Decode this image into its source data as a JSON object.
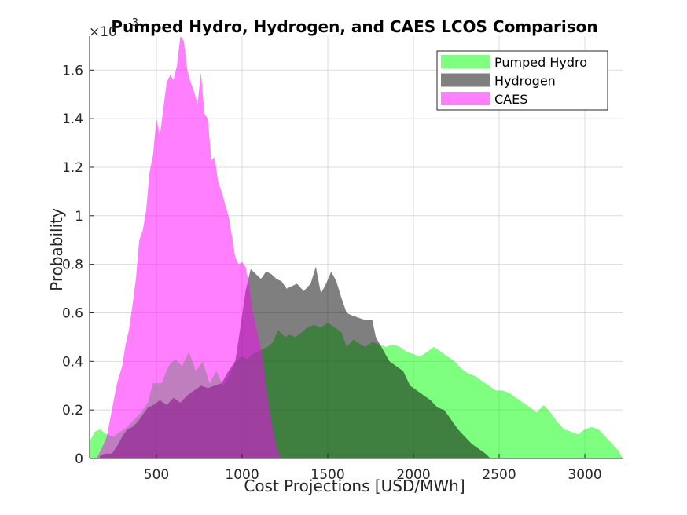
{
  "chart_data": {
    "type": "area",
    "title": "Pumped Hydro, Hydrogen, and CAES LCOS Comparison",
    "xlabel": "Cost Projections [USD/MWh]",
    "ylabel": "Probability",
    "y_exponent_label": "×10",
    "y_exponent_power": "-3",
    "xlim": [
      110,
      3220
    ],
    "ylim": [
      0,
      0.00174
    ],
    "x_ticks": [
      500,
      1000,
      1500,
      2000,
      2500,
      3000
    ],
    "x_tick_labels": [
      "500",
      "1000",
      "1500",
      "2000",
      "2500",
      "3000"
    ],
    "y_ticks": [
      0,
      0.0002,
      0.0004,
      0.0006,
      0.0008,
      0.001,
      0.0012,
      0.0014,
      0.0016
    ],
    "y_tick_labels": [
      "0",
      "0.2",
      "0.4",
      "0.6",
      "0.8",
      "1",
      "1.2",
      "1.4",
      "1.6"
    ],
    "grid": true,
    "legend_position": "top-right",
    "series": [
      {
        "name": "Pumped Hydro",
        "color": "#00ff00",
        "opacity": 0.5,
        "x": [
          110,
          140,
          170,
          210,
          250,
          290,
          330,
          370,
          410,
          450,
          480,
          530,
          570,
          610,
          650,
          690,
          730,
          770,
          810,
          850,
          890,
          930,
          960,
          1000,
          1030,
          1060,
          1090,
          1120,
          1150,
          1180,
          1210,
          1250,
          1280,
          1310,
          1350,
          1380,
          1420,
          1460,
          1500,
          1540,
          1580,
          1610,
          1650,
          1690,
          1720,
          1760,
          1800,
          1840,
          1880,
          1920,
          1960,
          2000,
          2040,
          2080,
          2120,
          2160,
          2200,
          2240,
          2280,
          2320,
          2360,
          2400,
          2440,
          2480,
          2520,
          2560,
          2600,
          2640,
          2680,
          2720,
          2760,
          2800,
          2840,
          2880,
          2920,
          2960,
          3000,
          3040,
          3080,
          3120,
          3160,
          3200,
          3220
        ],
        "y": [
          7e-05,
          0.00011,
          0.00012,
          0.0001,
          9e-05,
          0.00011,
          0.00013,
          0.00016,
          0.00019,
          0.00023,
          0.00031,
          0.00031,
          0.00038,
          0.00041,
          0.00038,
          0.00044,
          0.00036,
          0.0004,
          0.00031,
          0.00036,
          0.0003,
          0.00035,
          0.0004,
          0.00042,
          0.00041,
          0.00043,
          0.00044,
          0.00045,
          0.00046,
          0.00048,
          0.00053,
          0.0005,
          0.00051,
          0.0005,
          0.00052,
          0.00054,
          0.00055,
          0.00054,
          0.00056,
          0.00054,
          0.00052,
          0.00046,
          0.00049,
          0.00047,
          0.00046,
          0.00048,
          0.00047,
          0.00046,
          0.00047,
          0.00046,
          0.00044,
          0.00043,
          0.00042,
          0.00044,
          0.00046,
          0.00044,
          0.00042,
          0.0004,
          0.00037,
          0.00035,
          0.00034,
          0.00032,
          0.0003,
          0.00028,
          0.00028,
          0.00027,
          0.00025,
          0.00023,
          0.00021,
          0.00019,
          0.00022,
          0.00019,
          0.00015,
          0.00012,
          0.00011,
          0.0001,
          0.00012,
          0.00013,
          0.00012,
          9e-05,
          6e-05,
          3e-05,
          0.0
        ]
      },
      {
        "name": "Hydrogen",
        "color": "#000000",
        "opacity": 0.5,
        "x": [
          170,
          200,
          240,
          270,
          300,
          330,
          360,
          390,
          420,
          450,
          480,
          520,
          560,
          600,
          640,
          680,
          720,
          760,
          800,
          840,
          880,
          920,
          960,
          990,
          1020,
          1050,
          1080,
          1110,
          1140,
          1170,
          1200,
          1230,
          1260,
          1290,
          1320,
          1360,
          1400,
          1430,
          1460,
          1490,
          1520,
          1550,
          1580,
          1610,
          1640,
          1680,
          1720,
          1760,
          1780,
          1820,
          1860,
          1900,
          1940,
          1980,
          2020,
          2060,
          2100,
          2140,
          2180,
          2220,
          2260,
          2300,
          2340,
          2380,
          2420,
          2450
        ],
        "y": [
          1e-05,
          2e-05,
          2e-05,
          5e-05,
          9e-05,
          0.00012,
          0.00013,
          0.00015,
          0.00018,
          0.00021,
          0.00022,
          0.00024,
          0.00022,
          0.00025,
          0.00023,
          0.00026,
          0.00028,
          0.0003,
          0.00029,
          0.0003,
          0.00031,
          0.00036,
          0.0004,
          0.00054,
          0.00069,
          0.00078,
          0.00076,
          0.00074,
          0.00077,
          0.00076,
          0.00074,
          0.00073,
          0.0007,
          0.00071,
          0.00072,
          0.00069,
          0.00072,
          0.00079,
          0.00068,
          0.00072,
          0.00077,
          0.00073,
          0.00066,
          0.0006,
          0.00059,
          0.00058,
          0.00057,
          0.00057,
          0.0005,
          0.00045,
          0.0004,
          0.00038,
          0.00036,
          0.0003,
          0.00028,
          0.00026,
          0.00024,
          0.00021,
          0.0002,
          0.00016,
          0.00012,
          9e-05,
          6e-05,
          4e-05,
          2e-05,
          0.0
        ]
      },
      {
        "name": "CAES",
        "color": "#ff00ff",
        "opacity": 0.5,
        "x": [
          150,
          180,
          210,
          240,
          270,
          300,
          320,
          340,
          360,
          380,
          400,
          420,
          440,
          460,
          480,
          500,
          520,
          540,
          560,
          580,
          600,
          620,
          640,
          660,
          680,
          700,
          720,
          740,
          760,
          780,
          800,
          820,
          840,
          860,
          880,
          900,
          920,
          940,
          960,
          980,
          1000,
          1020,
          1040,
          1060,
          1080,
          1100,
          1120,
          1140,
          1160,
          1180,
          1200,
          1220,
          1240
        ],
        "y": [
          0.0,
          4e-05,
          9e-05,
          0.0002,
          0.00031,
          0.00038,
          0.00047,
          0.00053,
          0.00063,
          0.00074,
          0.0009,
          0.00094,
          0.00102,
          0.00118,
          0.00125,
          0.0014,
          0.00133,
          0.00144,
          0.00155,
          0.00158,
          0.00156,
          0.00162,
          0.00174,
          0.00172,
          0.0016,
          0.00155,
          0.00151,
          0.00146,
          0.00159,
          0.00142,
          0.0014,
          0.00123,
          0.00124,
          0.00114,
          0.0011,
          0.00105,
          0.001,
          0.00092,
          0.00083,
          0.0008,
          0.00081,
          0.00079,
          0.00072,
          0.00061,
          0.00055,
          0.00048,
          0.00042,
          0.0003,
          0.0002,
          0.00012,
          5e-05,
          1e-05,
          0.0
        ]
      }
    ]
  }
}
